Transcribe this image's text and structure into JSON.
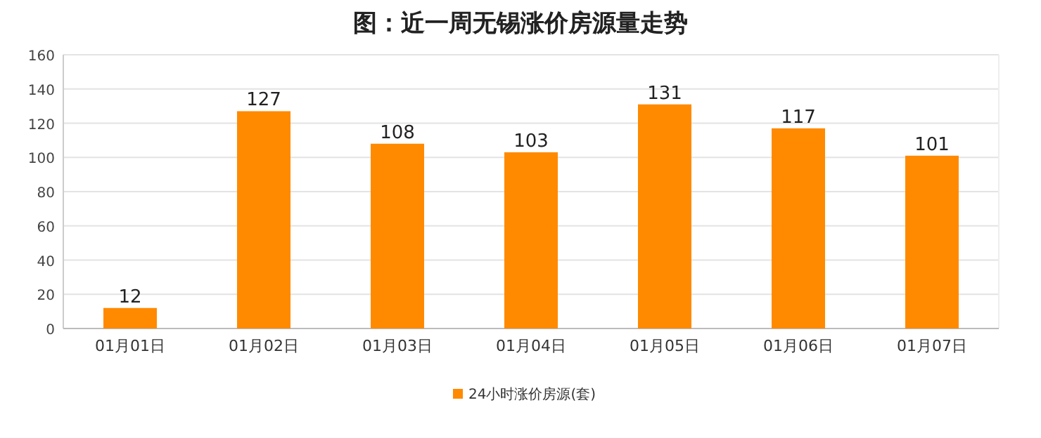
{
  "chart_data": {
    "type": "bar",
    "title": "图：近一周无锡涨价房源量走势",
    "categories": [
      "01月01日",
      "01月02日",
      "01月03日",
      "01月04日",
      "01月05日",
      "01月06日",
      "01月07日"
    ],
    "series": [
      {
        "name": "24小时涨价房源(套)",
        "color": "#ff8a00",
        "values": [
          12,
          127,
          108,
          103,
          131,
          117,
          101
        ]
      }
    ],
    "ylim": [
      0,
      160
    ],
    "yticks": [
      0,
      20,
      40,
      60,
      80,
      100,
      120,
      140,
      160
    ],
    "grid": "y",
    "legend": "bottom",
    "data_labels": true
  }
}
